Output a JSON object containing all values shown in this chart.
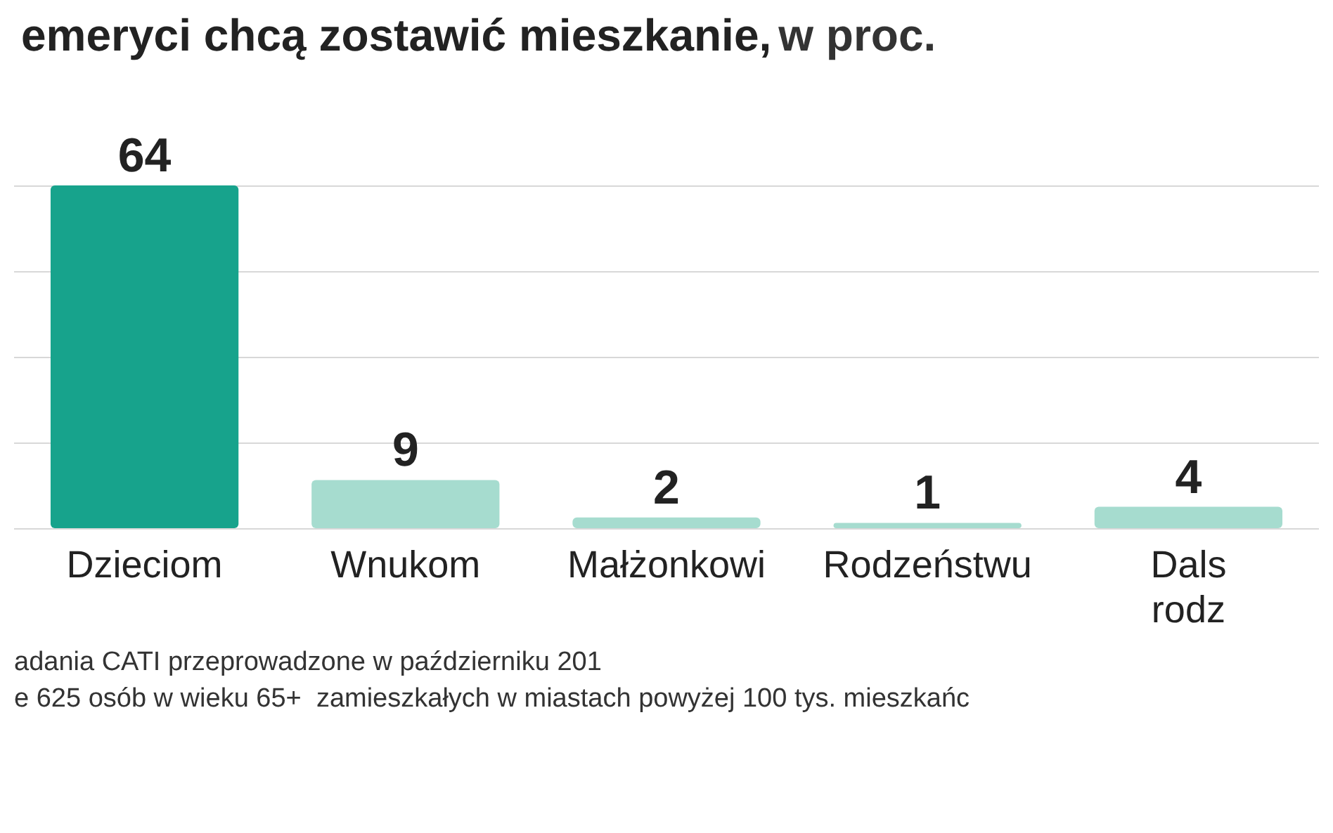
{
  "chart_data": {
    "type": "bar",
    "title": "emeryci chcą zostawić mieszkanie,",
    "subtitle": "w proc.",
    "categories": [
      "Dzieciom",
      "Wnukom",
      "Małżonkowi",
      "Rodzeństwu",
      "Dals\nrodz"
    ],
    "values": [
      64,
      9,
      2,
      1,
      4
    ],
    "colors": [
      "#17a38c",
      "#a6dccf",
      "#a6dccf",
      "#a6dccf",
      "#a6dccf"
    ],
    "grid": "y",
    "tick_labels": "x",
    "data_labels": true,
    "annotations": [
      "adania CATI przeprowadzone w październiku 201",
      "e 625 osób w wieku 65+  zamieszkałych w miastach powyżej 100 tys. mieszkańc"
    ]
  }
}
